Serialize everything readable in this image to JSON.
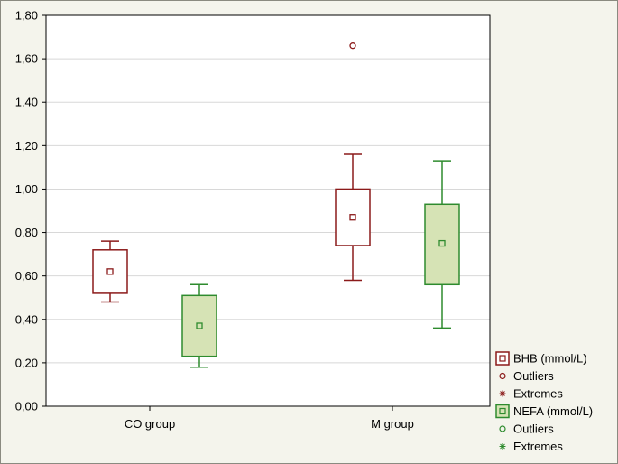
{
  "chart_data": {
    "type": "boxplot",
    "categories": [
      "CO group",
      "M group"
    ],
    "ylim": [
      0,
      1.8
    ],
    "yticks": [
      "0,00",
      "0,20",
      "0,40",
      "0,60",
      "0,80",
      "1,00",
      "1,20",
      "1,40",
      "1,60",
      "1,80"
    ],
    "ytick_values": [
      0,
      0.2,
      0.4,
      0.6,
      0.8,
      1.0,
      1.2,
      1.4,
      1.6,
      1.8
    ],
    "grid": true,
    "legend_position": "bottom-right",
    "series": [
      {
        "name": "BHB (mmol/L)",
        "color": "#8b1a1a",
        "fill": "#ffffff",
        "boxes": [
          {
            "category": "CO group",
            "whisker_low": 0.48,
            "q1": 0.52,
            "median": 0.62,
            "q3": 0.72,
            "whisker_high": 0.76,
            "outliers": [],
            "extremes": []
          },
          {
            "category": "M group",
            "whisker_low": 0.58,
            "q1": 0.74,
            "median": 0.87,
            "q3": 1.0,
            "whisker_high": 1.16,
            "outliers": [
              1.66
            ],
            "extremes": []
          }
        ]
      },
      {
        "name": "NEFA (mmol/L)",
        "color": "#2e8b2e",
        "fill": "#d6e3b5",
        "boxes": [
          {
            "category": "CO group",
            "whisker_low": 0.18,
            "q1": 0.23,
            "median": 0.37,
            "q3": 0.51,
            "whisker_high": 0.56,
            "outliers": [],
            "extremes": []
          },
          {
            "category": "M group",
            "whisker_low": 0.36,
            "q1": 0.56,
            "median": 0.75,
            "q3": 0.93,
            "whisker_high": 1.13,
            "outliers": [],
            "extremes": []
          }
        ]
      }
    ],
    "legend": [
      {
        "label": "BHB (mmol/L)",
        "kind": "box",
        "color": "#8b1a1a",
        "fill": "#ffffff"
      },
      {
        "label": "Outliers",
        "kind": "circle",
        "color": "#8b1a1a"
      },
      {
        "label": "Extremes",
        "kind": "star",
        "color": "#8b1a1a"
      },
      {
        "label": "NEFA (mmol/L)",
        "kind": "box",
        "color": "#2e8b2e",
        "fill": "#d6e3b5"
      },
      {
        "label": "Outliers",
        "kind": "circle",
        "color": "#2e8b2e"
      },
      {
        "label": "Extremes",
        "kind": "star",
        "color": "#2e8b2e"
      }
    ]
  }
}
